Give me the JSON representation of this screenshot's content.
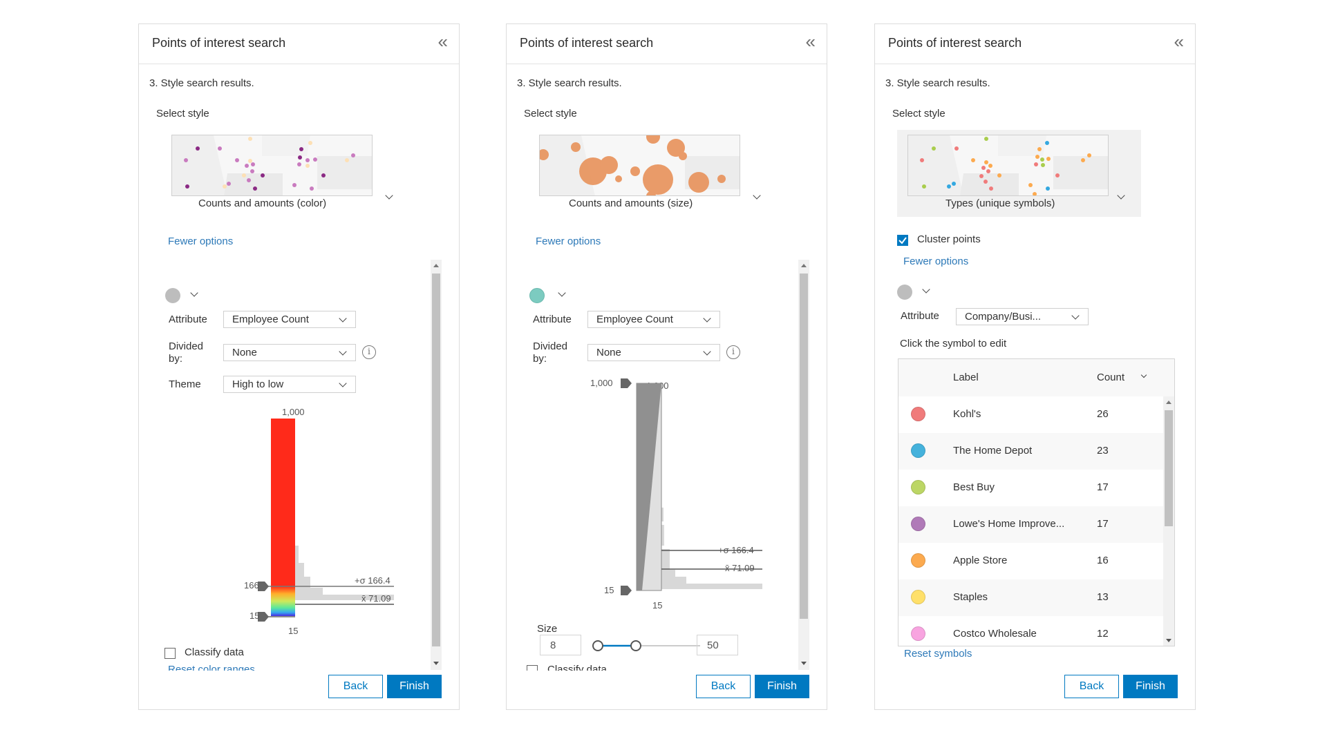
{
  "panels": [
    {
      "title": "Points of interest search",
      "step": "3.  Style search results.",
      "select_style_label": "Select style",
      "style_caption": "Counts and amounts (color)",
      "fewer_options": "Fewer options",
      "symbol_color": "#bdbdbd",
      "attribute_label": "Attribute",
      "attribute_value": "Employee Count",
      "divided_label": "Divided by:",
      "divided_value": "None",
      "theme_label": "Theme",
      "theme_value": "High to low",
      "slider": {
        "max_label": "1,000",
        "handle_high": "166",
        "handle_low": "15",
        "min_label": "15",
        "stddev_label": "+σ 166.4",
        "mean_label": "x̄ 71.09"
      },
      "classify_label": "Classify data",
      "classify_checked": false,
      "reset_link": "Reset color ranges",
      "back": "Back",
      "finish": "Finish"
    },
    {
      "title": "Points of interest search",
      "step": "3.  Style search results.",
      "select_style_label": "Select style",
      "style_caption": "Counts and amounts (size)",
      "fewer_options": "Fewer options",
      "symbol_color": "#7ccbc0",
      "attribute_label": "Attribute",
      "attribute_value": "Employee Count",
      "divided_label": "Divided by:",
      "divided_value": "None",
      "slider": {
        "max_label": "1,000",
        "handle_high": "1,000",
        "handle_low": "15",
        "min_label": "15",
        "stddev_label": "+σ 166.4",
        "mean_label": "x̄ 71.09"
      },
      "size_label": "Size",
      "size_min": "8",
      "size_max": "50",
      "classify_label": "Classify data",
      "classify_checked": false,
      "back": "Back",
      "finish": "Finish"
    },
    {
      "title": "Points of interest search",
      "step": "3.  Style search results.",
      "select_style_label": "Select style",
      "style_caption": "Types (unique symbols)",
      "cluster_label": "Cluster points",
      "cluster_checked": true,
      "fewer_options": "Fewer options",
      "symbol_color": "#bdbdbd",
      "attribute_label": "Attribute",
      "attribute_value": "Company/Busi...",
      "click_hint": "Click the symbol to edit",
      "table": {
        "label_header": "Label",
        "count_header": "Count",
        "rows": [
          {
            "label": "Kohl's",
            "count": "26",
            "color": "#f07b7b"
          },
          {
            "label": "The Home Depot",
            "count": "23",
            "color": "#45b2dc"
          },
          {
            "label": "Best Buy",
            "count": "17",
            "color": "#bcd665"
          },
          {
            "label": "Lowe's Home Improve...",
            "count": "17",
            "color": "#b07ab8"
          },
          {
            "label": "Apple Store",
            "count": "16",
            "color": "#fcaa4f"
          },
          {
            "label": "Staples",
            "count": "13",
            "color": "#ffe06a"
          },
          {
            "label": "Costco Wholesale",
            "count": "12",
            "color": "#f8a4e0"
          }
        ]
      },
      "reset_link": "Reset symbols",
      "back": "Back",
      "finish": "Finish"
    }
  ]
}
